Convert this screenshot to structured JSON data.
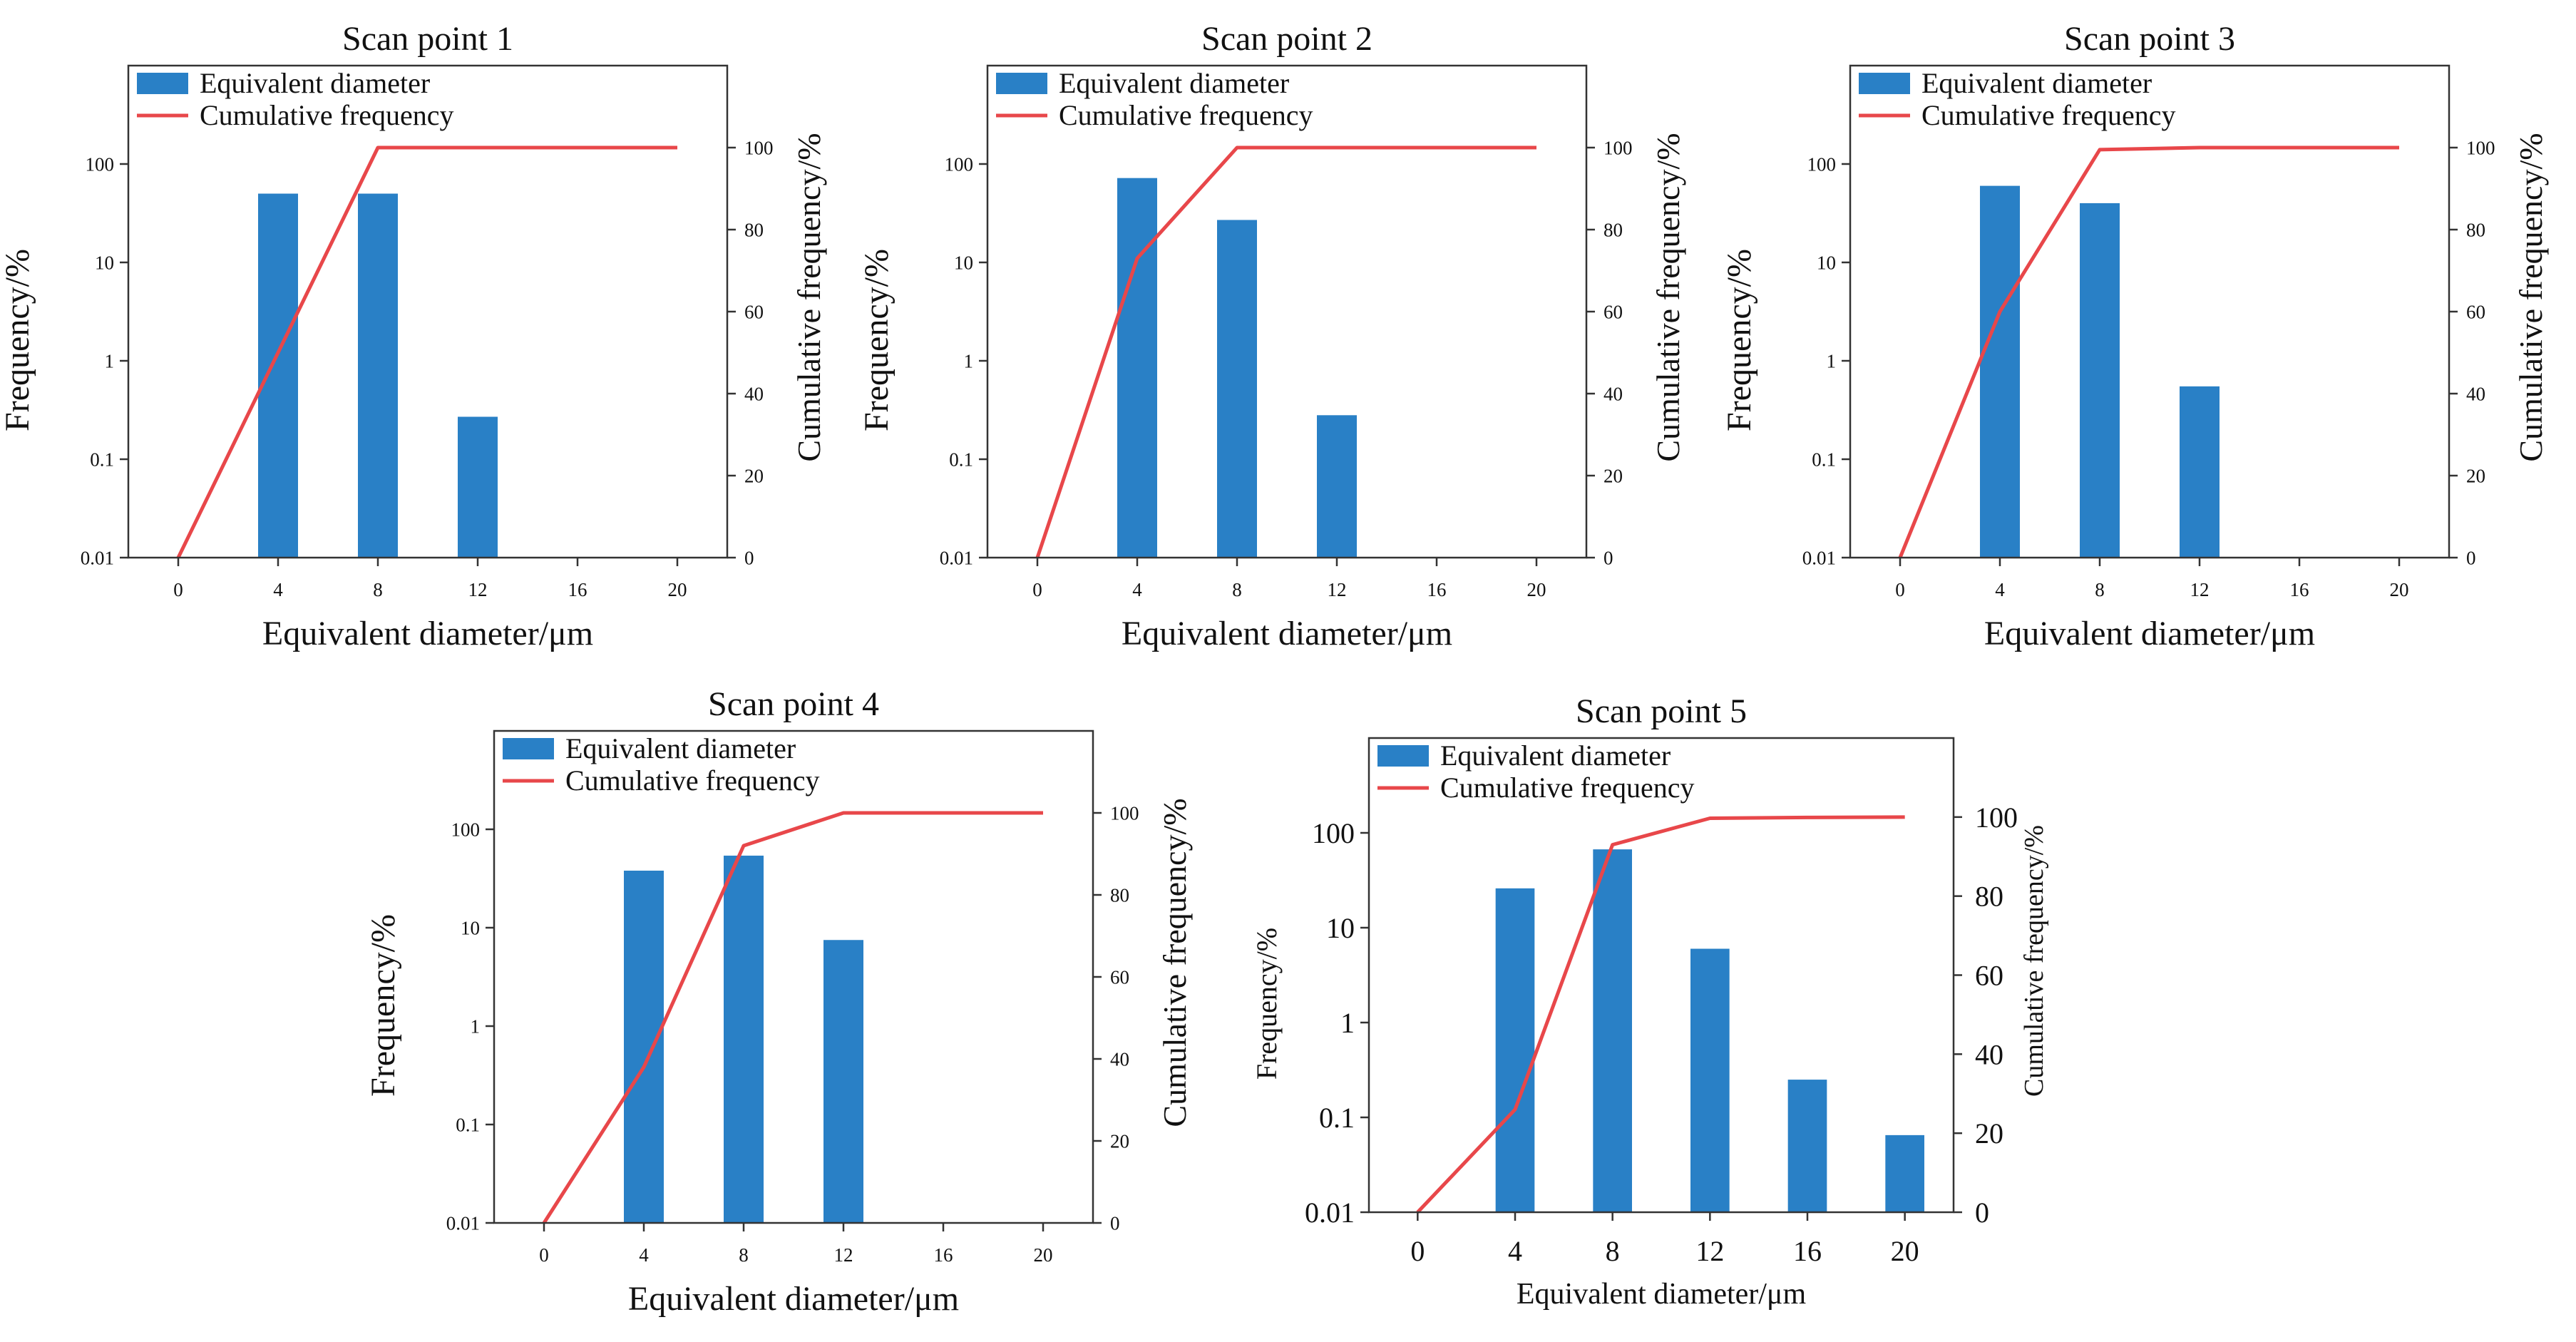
{
  "figure": {
    "colors": {
      "bar": "#2980c6",
      "line": "#e8474a",
      "axis": "#333333",
      "text": "#111111"
    }
  },
  "chart_data": [
    {
      "type": "bar",
      "title": "Scan point 1",
      "xlabel": "Equivalent diameter/μm",
      "ylabel": "Frequency/%",
      "y2label": "Cumulative frequency/%",
      "x_ticks": [
        0,
        4,
        8,
        12,
        16,
        20
      ],
      "y_ticks": [
        0.01,
        0.1,
        1,
        10,
        100
      ],
      "y_tick_labels": [
        "0.01",
        "0.1",
        "1",
        "10",
        "100"
      ],
      "y2_ticks": [
        0,
        20,
        40,
        60,
        80,
        100
      ],
      "yscale": "log",
      "ylim": [
        0.01,
        1000
      ],
      "y2lim": [
        0,
        120
      ],
      "xlim": [
        -2,
        22
      ],
      "legend": [
        "Equivalent diameter",
        "Cumulative frequency"
      ],
      "legend_position": "top-left",
      "bars": {
        "x": [
          4,
          8,
          12
        ],
        "values": [
          50,
          50,
          0.27
        ]
      },
      "cumulative": {
        "x": [
          0,
          4,
          8,
          12,
          16,
          20
        ],
        "values": [
          0,
          50,
          100,
          100,
          100,
          100
        ]
      }
    },
    {
      "type": "bar",
      "title": "Scan point 2",
      "xlabel": "Equivalent diameter/μm",
      "ylabel": "Frequency/%",
      "y2label": "Cumulative frequency/%",
      "x_ticks": [
        0,
        4,
        8,
        12,
        16,
        20
      ],
      "y_ticks": [
        0.01,
        0.1,
        1,
        10,
        100
      ],
      "y_tick_labels": [
        "0.01",
        "0.1",
        "1",
        "10",
        "100"
      ],
      "y2_ticks": [
        0,
        20,
        40,
        60,
        80,
        100
      ],
      "yscale": "log",
      "ylim": [
        0.01,
        1000
      ],
      "y2lim": [
        0,
        120
      ],
      "xlim": [
        -2,
        22
      ],
      "legend": [
        "Equivalent diameter",
        "Cumulative frequency"
      ],
      "legend_position": "top-left",
      "bars": {
        "x": [
          4,
          8,
          12
        ],
        "values": [
          72,
          27,
          0.28
        ]
      },
      "cumulative": {
        "x": [
          0,
          4,
          8,
          12,
          16,
          20
        ],
        "values": [
          0,
          73,
          100,
          100,
          100,
          100
        ]
      }
    },
    {
      "type": "bar",
      "title": "Scan point 3",
      "xlabel": "Equivalent diameter/μm",
      "ylabel": "Frequency/%",
      "y2label": "Cumulative frequency/%",
      "x_ticks": [
        0,
        4,
        8,
        12,
        16,
        20
      ],
      "y_ticks": [
        0.01,
        0.1,
        1,
        10,
        100
      ],
      "y_tick_labels": [
        "0.01",
        "0.1",
        "1",
        "10",
        "100"
      ],
      "y2_ticks": [
        0,
        20,
        40,
        60,
        80,
        100
      ],
      "yscale": "log",
      "ylim": [
        0.01,
        1000
      ],
      "y2lim": [
        0,
        120
      ],
      "xlim": [
        -2,
        22
      ],
      "legend": [
        "Equivalent diameter",
        "Cumulative frequency"
      ],
      "legend_position": "top-left",
      "bars": {
        "x": [
          4,
          8,
          12
        ],
        "values": [
          60,
          40,
          0.55
        ]
      },
      "cumulative": {
        "x": [
          0,
          4,
          8,
          12,
          16,
          20
        ],
        "values": [
          0,
          60,
          99.5,
          100,
          100,
          100
        ]
      }
    },
    {
      "type": "bar",
      "title": "Scan point 4",
      "xlabel": "Equivalent diameter/μm",
      "ylabel": "Frequency/%",
      "y2label": "Cumulative frequency/%",
      "x_ticks": [
        0,
        4,
        8,
        12,
        16,
        20
      ],
      "y_ticks": [
        0.01,
        0.1,
        1,
        10,
        100
      ],
      "y_tick_labels": [
        "0.01",
        "0.1",
        "1",
        "10",
        "100"
      ],
      "y2_ticks": [
        0,
        20,
        40,
        60,
        80,
        100
      ],
      "yscale": "log",
      "ylim": [
        0.01,
        1000
      ],
      "y2lim": [
        0,
        120
      ],
      "xlim": [
        -2,
        22
      ],
      "legend": [
        "Equivalent diameter",
        "Cumulative frequency"
      ],
      "legend_position": "top-left",
      "bars": {
        "x": [
          4,
          8,
          12
        ],
        "values": [
          38,
          54,
          7.5
        ]
      },
      "cumulative": {
        "x": [
          0,
          4,
          8,
          12,
          16,
          20
        ],
        "values": [
          0,
          38,
          92,
          100,
          100,
          100
        ]
      }
    },
    {
      "type": "bar",
      "title": "Scan point 5",
      "xlabel": "Equivalent diameter/μm",
      "ylabel": "Frequency/%",
      "y2label": "Cumulative frequency/%",
      "x_ticks": [
        0,
        4,
        8,
        12,
        16,
        20
      ],
      "y_ticks": [
        0.01,
        0.1,
        1,
        10,
        100
      ],
      "y_tick_labels": [
        "0.01",
        "0.1",
        "1",
        "10",
        "100"
      ],
      "y2_ticks": [
        0,
        20,
        40,
        60,
        80,
        100
      ],
      "yscale": "log",
      "ylim": [
        0.01,
        1000
      ],
      "y2lim": [
        0,
        120
      ],
      "xlim": [
        -2,
        22
      ],
      "legend": [
        "Equivalent diameter",
        "Cumulative frequency"
      ],
      "legend_position": "top-left",
      "bars": {
        "x": [
          4,
          8,
          12,
          16,
          20
        ],
        "values": [
          26,
          67,
          6,
          0.25,
          0.065
        ]
      },
      "cumulative": {
        "x": [
          0,
          4,
          8,
          12,
          16,
          20
        ],
        "values": [
          0,
          26,
          93,
          99.7,
          99.9,
          100
        ]
      }
    }
  ]
}
